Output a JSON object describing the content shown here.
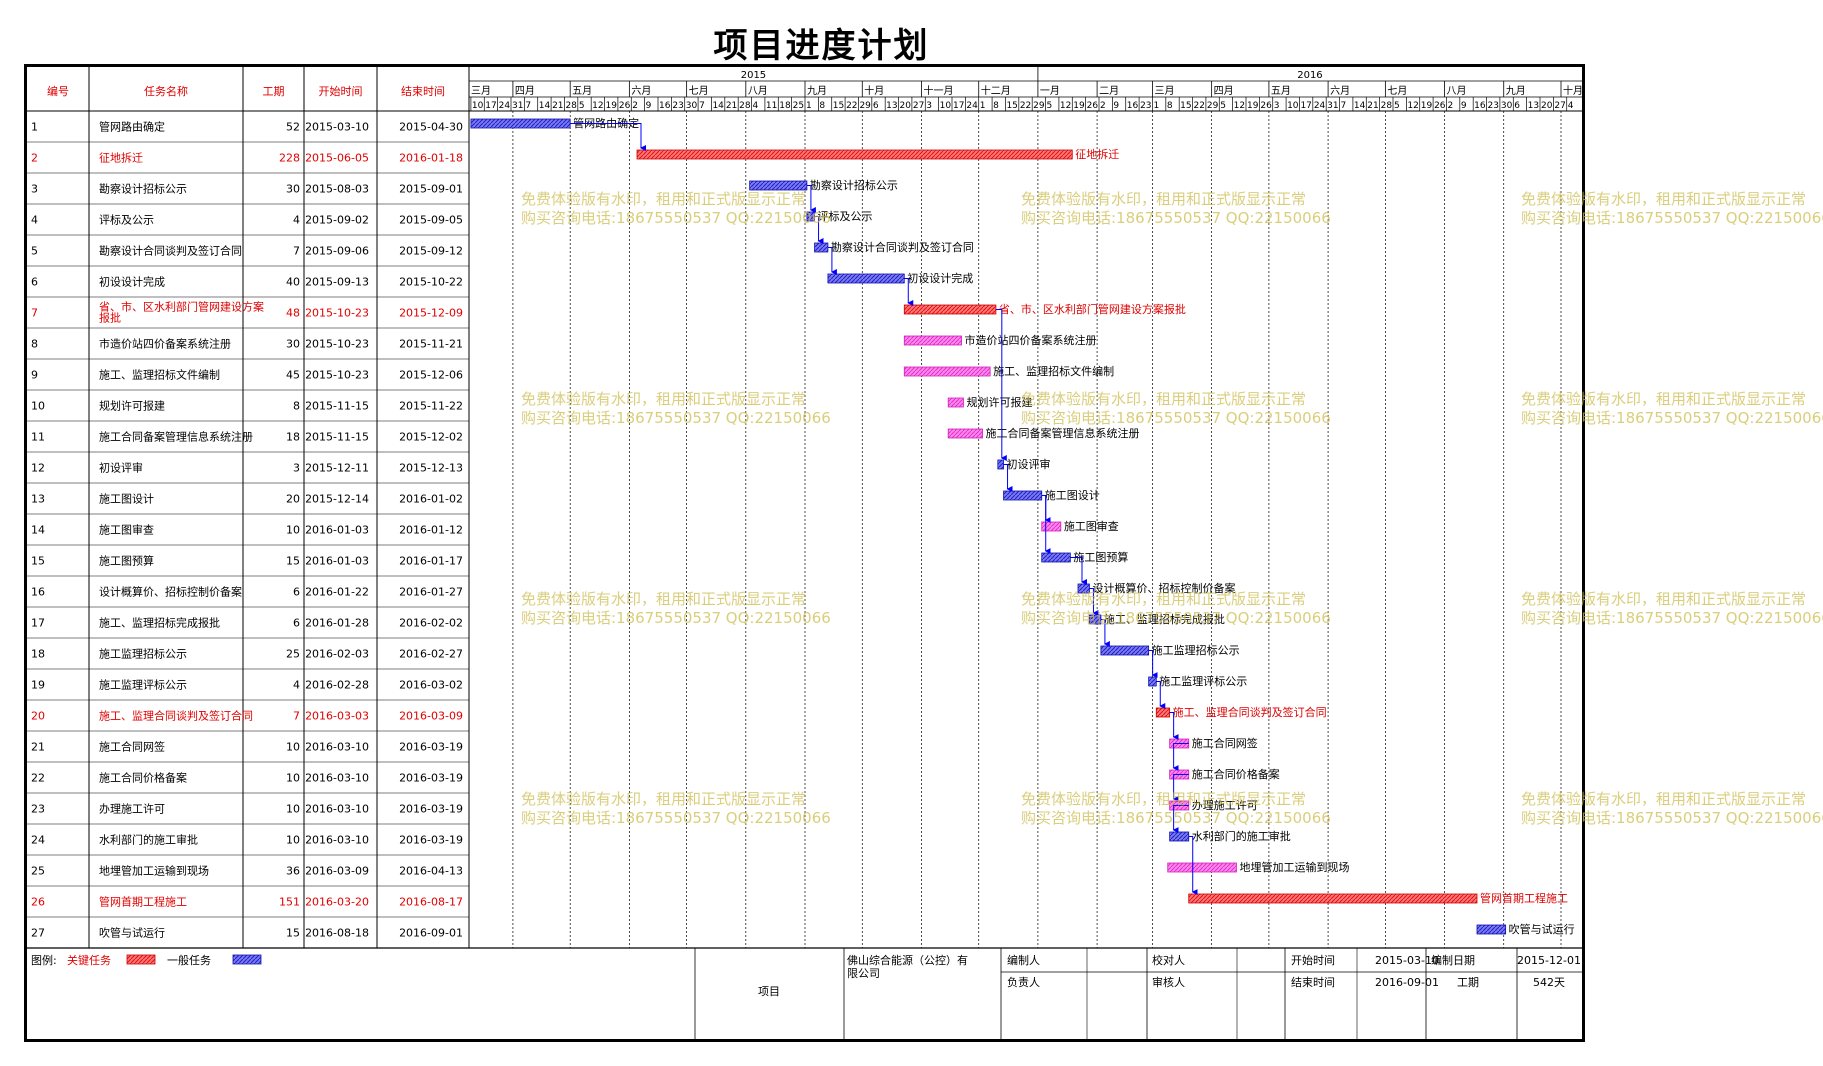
{
  "title": "项目进度计划",
  "colors": {
    "critical": "#ff4f4f",
    "critical_fill": "#f77",
    "normal": "#5050f0",
    "pink": "#ff66dd",
    "arrow": "#0000ff",
    "red_text": "#e00000",
    "watermark": "#cdbe50"
  },
  "table": {
    "headers": {
      "id": "编号",
      "name": "任务名称",
      "duration": "工期",
      "start": "开始时间",
      "end": "结束时间"
    }
  },
  "timeline": {
    "years": [
      "2015",
      "2016"
    ],
    "months": [
      "三月",
      "四月",
      "五月",
      "六月",
      "七月",
      "八月",
      "九月",
      "十月",
      "十一月",
      "十二月",
      "一月",
      "二月",
      "三月",
      "四月",
      "五月",
      "六月",
      "七月",
      "八月",
      "九月",
      "十月"
    ],
    "start": "2015-03-09",
    "end": "2016-10-12"
  },
  "chart_data": {
    "type": "gantt",
    "title": "项目进度计划",
    "tasks": [
      {
        "id": "1",
        "name": "管网路由确定",
        "duration": "52",
        "start": "2015-03-10",
        "end": "2015-04-30",
        "kind": "normal"
      },
      {
        "id": "2",
        "name": "征地拆迁",
        "duration": "228",
        "start": "2015-06-05",
        "end": "2016-01-18",
        "kind": "critical"
      },
      {
        "id": "3",
        "name": "勘察设计招标公示",
        "duration": "30",
        "start": "2015-08-03",
        "end": "2015-09-01",
        "kind": "normal"
      },
      {
        "id": "4",
        "name": "评标及公示",
        "duration": "4",
        "start": "2015-09-02",
        "end": "2015-09-05",
        "kind": "normal"
      },
      {
        "id": "5",
        "name": "勘察设计合同谈判及签订合同",
        "duration": "7",
        "start": "2015-09-06",
        "end": "2015-09-12",
        "kind": "normal"
      },
      {
        "id": "6",
        "name": "初设设计完成",
        "duration": "40",
        "start": "2015-09-13",
        "end": "2015-10-22",
        "kind": "normal"
      },
      {
        "id": "7",
        "name": "省、市、区水利部门管网建设方案报批",
        "duration": "48",
        "start": "2015-10-23",
        "end": "2015-12-09",
        "kind": "critical"
      },
      {
        "id": "8",
        "name": "市造价站四价备案系统注册",
        "duration": "30",
        "start": "2015-10-23",
        "end": "2015-11-21",
        "kind": "pink"
      },
      {
        "id": "9",
        "name": "施工、监理招标文件编制",
        "duration": "45",
        "start": "2015-10-23",
        "end": "2015-12-06",
        "kind": "pink"
      },
      {
        "id": "10",
        "name": "规划许可报建",
        "duration": "8",
        "start": "2015-11-15",
        "end": "2015-11-22",
        "kind": "pink"
      },
      {
        "id": "11",
        "name": "施工合同备案管理信息系统注册",
        "duration": "18",
        "start": "2015-11-15",
        "end": "2015-12-02",
        "kind": "pink"
      },
      {
        "id": "12",
        "name": "初设评审",
        "duration": "3",
        "start": "2015-12-11",
        "end": "2015-12-13",
        "kind": "normal"
      },
      {
        "id": "13",
        "name": "施工图设计",
        "duration": "20",
        "start": "2015-12-14",
        "end": "2016-01-02",
        "kind": "normal"
      },
      {
        "id": "14",
        "name": "施工图审查",
        "duration": "10",
        "start": "2016-01-03",
        "end": "2016-01-12",
        "kind": "pink"
      },
      {
        "id": "15",
        "name": "施工图预算",
        "duration": "15",
        "start": "2016-01-03",
        "end": "2016-01-17",
        "kind": "normal"
      },
      {
        "id": "16",
        "name": "设计概算价、招标控制价备案",
        "duration": "6",
        "start": "2016-01-22",
        "end": "2016-01-27",
        "kind": "normal"
      },
      {
        "id": "17",
        "name": "施工、监理招标完成报批",
        "duration": "6",
        "start": "2016-01-28",
        "end": "2016-02-02",
        "kind": "normal"
      },
      {
        "id": "18",
        "name": "施工监理招标公示",
        "duration": "25",
        "start": "2016-02-03",
        "end": "2016-02-27",
        "kind": "normal"
      },
      {
        "id": "19",
        "name": "施工监理评标公示",
        "duration": "4",
        "start": "2016-02-28",
        "end": "2016-03-02",
        "kind": "normal"
      },
      {
        "id": "20",
        "name": "施工、监理合同谈判及签订合同",
        "duration": "7",
        "start": "2016-03-03",
        "end": "2016-03-09",
        "kind": "critical"
      },
      {
        "id": "21",
        "name": "施工合同网签",
        "duration": "10",
        "start": "2016-03-10",
        "end": "2016-03-19",
        "kind": "pink"
      },
      {
        "id": "22",
        "name": "施工合同价格备案",
        "duration": "10",
        "start": "2016-03-10",
        "end": "2016-03-19",
        "kind": "pink"
      },
      {
        "id": "23",
        "name": "办理施工许可",
        "duration": "10",
        "start": "2016-03-10",
        "end": "2016-03-19",
        "kind": "pink"
      },
      {
        "id": "24",
        "name": "水利部门的施工审批",
        "duration": "10",
        "start": "2016-03-10",
        "end": "2016-03-19",
        "kind": "normal"
      },
      {
        "id": "25",
        "name": "地埋管加工运输到现场",
        "duration": "36",
        "start": "2016-03-09",
        "end": "2016-04-13",
        "kind": "pink"
      },
      {
        "id": "26",
        "name": "管网首期工程施工",
        "duration": "151",
        "start": "2016-03-20",
        "end": "2016-08-17",
        "kind": "critical"
      },
      {
        "id": "27",
        "name": "吹管与试运行",
        "duration": "15",
        "start": "2016-08-18",
        "end": "2016-09-01",
        "kind": "normal"
      }
    ],
    "dependencies": [
      [
        1,
        2
      ],
      [
        3,
        4
      ],
      [
        4,
        5
      ],
      [
        5,
        6
      ],
      [
        6,
        7
      ],
      [
        7,
        12
      ],
      [
        12,
        13
      ],
      [
        13,
        14
      ],
      [
        13,
        15
      ],
      [
        15,
        16
      ],
      [
        16,
        17
      ],
      [
        17,
        18
      ],
      [
        18,
        19
      ],
      [
        19,
        20
      ],
      [
        20,
        21
      ],
      [
        21,
        22
      ],
      [
        22,
        23
      ],
      [
        23,
        24
      ],
      [
        24,
        26
      ]
    ]
  },
  "footer": {
    "legend_label": "图例:",
    "critical_label": "关键任务",
    "normal_label": "一般任务",
    "project_label": "项目",
    "company": "佛山综合能源（公控）有限公司",
    "compiler_label": "编制人",
    "reviewer_label": "校对人",
    "start_label": "开始时间",
    "start_value": "2015-03-10",
    "compile_date_label": "编制日期",
    "compile_date_value": "2015-12-01",
    "owner_label": "负责人",
    "auditor_label": "审核人",
    "end_label": "结束时间",
    "end_value": "2016-09-01",
    "duration_label": "工期",
    "duration_value": "542天"
  },
  "watermark": {
    "line1": "免费体验版有水印，租用和正式版显示正常",
    "line2": "购买咨询电话:18675550537 QQ:22150066"
  }
}
